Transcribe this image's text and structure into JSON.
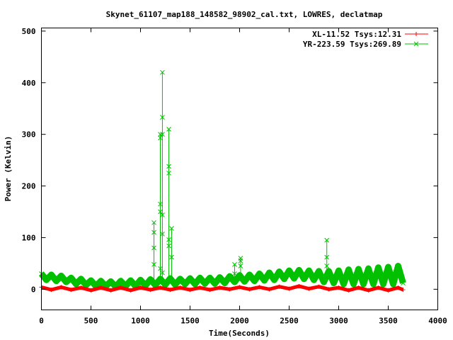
{
  "chart_data": {
    "type": "line",
    "title": "Skynet_61107_map188_148582_98902_cal.txt, LOWRES, declatmap",
    "xlabel": "Time(Seconds)",
    "ylabel": "Power (Kelvin)",
    "xlim": [
      0,
      4000
    ],
    "ylim": [
      -40,
      506
    ],
    "xticks": [
      0,
      500,
      1000,
      1500,
      2000,
      2500,
      3000,
      3500,
      4000
    ],
    "yticks": [
      0,
      100,
      200,
      300,
      400,
      500
    ],
    "grid": false,
    "legend_position": "top-right",
    "series": [
      {
        "name": "XL-11.52 Tsys:12.31",
        "color": "#ff0000",
        "marker": "plus",
        "x": [
          0,
          100,
          200,
          300,
          400,
          500,
          600,
          700,
          800,
          900,
          1000,
          1100,
          1200,
          1300,
          1400,
          1500,
          1600,
          1700,
          1800,
          1900,
          2000,
          2100,
          2200,
          2300,
          2400,
          2500,
          2600,
          2700,
          2800,
          2900,
          3000,
          3100,
          3200,
          3300,
          3400,
          3500,
          3600,
          3650
        ],
        "y": [
          4,
          -1,
          4,
          -1,
          3,
          -2,
          3,
          -2,
          3,
          -2,
          3,
          -1,
          3,
          -1,
          3,
          -1,
          3,
          -1,
          3,
          0,
          4,
          0,
          4,
          0,
          5,
          1,
          6,
          1,
          5,
          0,
          3,
          -2,
          3,
          -2,
          3,
          -2,
          3,
          -1
        ]
      },
      {
        "name": "YR-223.59 Tsys:269.89",
        "color": "#00c000",
        "marker": "cross",
        "x": [
          0,
          50,
          100,
          150,
          200,
          250,
          300,
          350,
          400,
          450,
          500,
          550,
          600,
          650,
          700,
          750,
          800,
          850,
          900,
          950,
          1000,
          1050,
          1100,
          1150,
          1200,
          1250,
          1300,
          1350,
          1400,
          1450,
          1500,
          1550,
          1600,
          1650,
          1700,
          1750,
          1800,
          1850,
          1900,
          1950,
          2000,
          2050,
          2100,
          2150,
          2200,
          2250,
          2300,
          2350,
          2400,
          2450,
          2500,
          2550,
          2600,
          2650,
          2700,
          2750,
          2800,
          2850,
          2900,
          2950,
          3000,
          3050,
          3100,
          3150,
          3200,
          3250,
          3300,
          3350,
          3400,
          3450,
          3500,
          3550,
          3600,
          3650
        ],
        "y": [
          30,
          18,
          28,
          16,
          26,
          14,
          22,
          10,
          20,
          8,
          17,
          6,
          16,
          6,
          15,
          5,
          16,
          6,
          17,
          6,
          18,
          7,
          19,
          8,
          20,
          9,
          21,
          9,
          20,
          10,
          21,
          10,
          22,
          11,
          22,
          11,
          23,
          12,
          25,
          14,
          27,
          15,
          28,
          16,
          30,
          17,
          32,
          18,
          34,
          20,
          36,
          21,
          37,
          20,
          36,
          18,
          35,
          14,
          35,
          12,
          36,
          10,
          38,
          10,
          39,
          10,
          40,
          10,
          42,
          10,
          43,
          10,
          45,
          12
        ],
        "spikes": [
          {
            "x": 1136,
            "values": [
              129,
              110,
              80,
              48
            ]
          },
          {
            "x": 1200,
            "values": [
              300,
              293,
              165,
              150,
              40
            ]
          },
          {
            "x": 1221,
            "values": [
              420,
              333,
              300,
              144,
              107,
              32
            ]
          },
          {
            "x": 1286,
            "values": [
              310,
              238,
              225,
              96,
              84
            ]
          },
          {
            "x": 1314,
            "values": [
              118,
              62
            ]
          },
          {
            "x": 1950,
            "values": [
              48,
              30
            ]
          },
          {
            "x": 2010,
            "values": [
              60,
              55,
              45
            ]
          },
          {
            "x": 2880,
            "values": [
              95,
              62,
              45
            ]
          }
        ]
      }
    ]
  }
}
